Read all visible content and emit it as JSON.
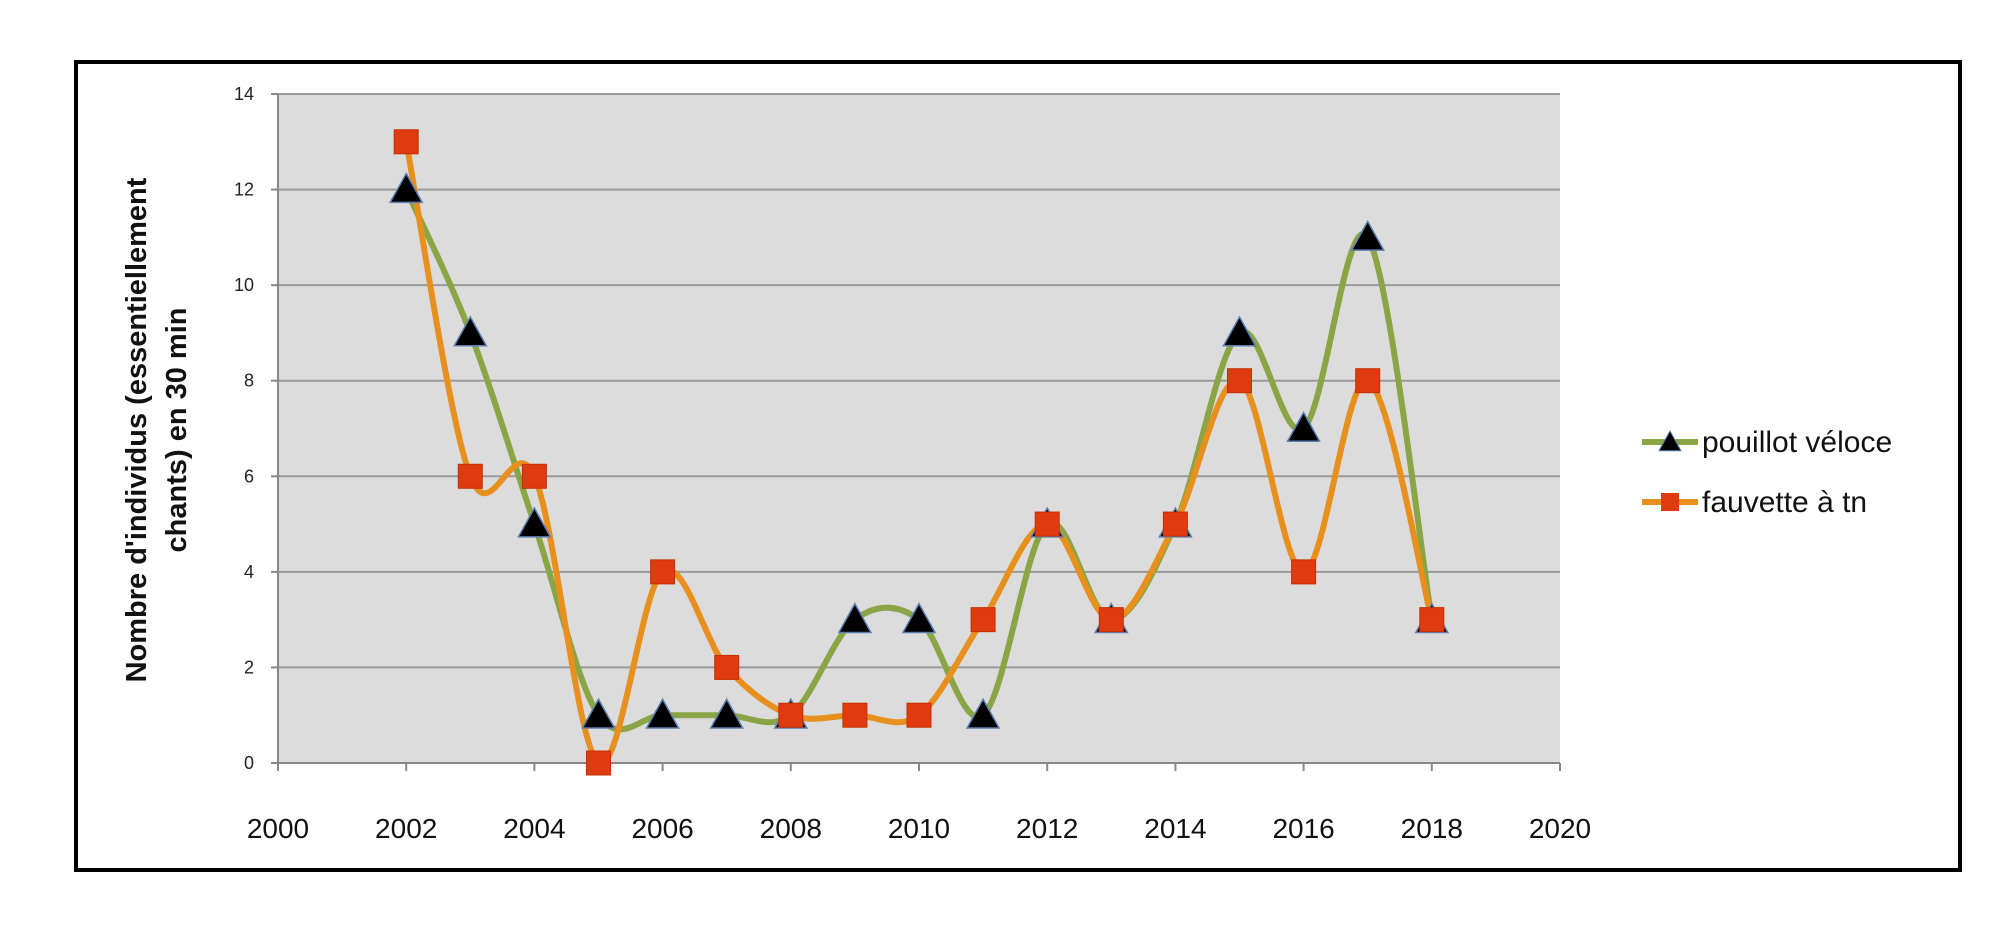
{
  "chart_data": {
    "type": "line",
    "title": "",
    "xlabel": "",
    "ylabel_lines": [
      "Nombre d'individus (essentiellement",
      "chants) en 30 min"
    ],
    "xlim": [
      2000,
      2020
    ],
    "ylim": [
      0,
      14
    ],
    "x_ticks": [
      2000,
      2002,
      2004,
      2006,
      2008,
      2010,
      2012,
      2014,
      2016,
      2018,
      2020
    ],
    "y_ticks": [
      0,
      2,
      4,
      6,
      8,
      10,
      12,
      14
    ],
    "grid": true,
    "legend_position": "right",
    "plot_background": "#dcdcdc",
    "series": [
      {
        "name": "pouillot véloce",
        "line_color": "#8aa545",
        "marker": "triangle",
        "marker_color": "#000000",
        "x": [
          2002,
          2003,
          2004,
          2005,
          2006,
          2007,
          2008,
          2009,
          2010,
          2011,
          2012,
          2013,
          2014,
          2015,
          2016,
          2017,
          2018
        ],
        "y": [
          12,
          9,
          5,
          1,
          1,
          1,
          1,
          3,
          3,
          1,
          5,
          3,
          5,
          9,
          7,
          11,
          3
        ]
      },
      {
        "name": "fauvette à tn",
        "line_color": "#e8901e",
        "marker": "square",
        "marker_color": "#e03a10",
        "x": [
          2002,
          2003,
          2004,
          2005,
          2006,
          2007,
          2008,
          2009,
          2010,
          2011,
          2012,
          2013,
          2014,
          2015,
          2016,
          2017,
          2018
        ],
        "y": [
          13,
          6,
          6,
          0,
          4,
          2,
          1,
          1,
          1,
          3,
          5,
          3,
          5,
          8,
          4,
          8,
          3
        ]
      }
    ]
  }
}
